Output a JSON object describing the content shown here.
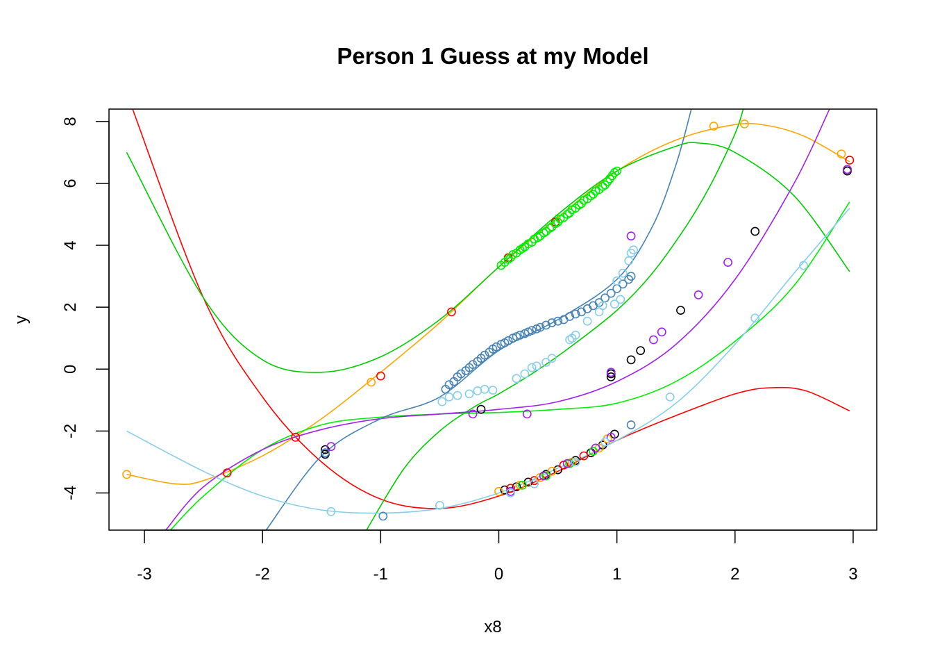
{
  "chart_data": {
    "type": "scatter",
    "title": "Person 1 Guess at my Model",
    "xlabel": "x8",
    "ylabel": "y",
    "xlim": [
      -3.3,
      3.2
    ],
    "ylim": [
      -5.2,
      8.4
    ],
    "grid": false,
    "x_ticks": [
      {
        "value": -3,
        "label": "-3"
      },
      {
        "value": -2,
        "label": "-2"
      },
      {
        "value": -1,
        "label": "-1"
      },
      {
        "value": 0,
        "label": "0"
      },
      {
        "value": 1,
        "label": "1"
      },
      {
        "value": 2,
        "label": "2"
      },
      {
        "value": 3,
        "label": "3"
      }
    ],
    "y_ticks": [
      {
        "value": -4,
        "label": "-4"
      },
      {
        "value": -2,
        "label": "-2"
      },
      {
        "value": 0,
        "label": "0"
      },
      {
        "value": 2,
        "label": "2"
      },
      {
        "value": 4,
        "label": "4"
      },
      {
        "value": 6,
        "label": "6"
      },
      {
        "value": 8,
        "label": "8"
      }
    ],
    "curves": [
      {
        "color": "#ff0000",
        "x": [
          -3.1,
          -2.5,
          -2.0,
          -1.5,
          -1.0,
          -0.5,
          0.0,
          0.5,
          1.0,
          1.5,
          2.0,
          2.3,
          2.6,
          2.97
        ],
        "y": [
          8.4,
          2.3,
          -0.9,
          -3.0,
          -4.2,
          -4.5,
          -4.1,
          -3.3,
          -2.3,
          -1.5,
          -0.8,
          -0.6,
          -0.7,
          -1.35
        ]
      },
      {
        "color": "#ffa500",
        "x": [
          -3.15,
          -2.75,
          -2.5,
          -2.0,
          -1.5,
          -1.0,
          -0.5,
          0.0,
          0.5,
          1.0,
          1.5,
          2.0,
          2.3,
          2.6,
          2.97
        ],
        "y": [
          -3.4,
          -3.7,
          -3.6,
          -2.8,
          -1.6,
          -0.1,
          1.5,
          3.3,
          4.9,
          6.4,
          7.4,
          7.9,
          7.85,
          7.5,
          6.7
        ]
      },
      {
        "color": "#00cd00",
        "x": [
          -3.15,
          -2.5,
          -2.0,
          -1.5,
          -1.0,
          -0.5,
          0.0,
          0.5,
          1.0,
          1.5,
          1.7,
          2.0,
          2.5,
          2.97
        ],
        "y": [
          7.0,
          2.3,
          0.3,
          -0.1,
          0.4,
          1.6,
          3.3,
          5.0,
          6.4,
          7.2,
          7.3,
          7.0,
          5.6,
          3.15
        ]
      },
      {
        "color": "#00cd00",
        "x": [
          -1.12,
          -0.8,
          -0.5,
          -0.2,
          0.0,
          0.3,
          0.6,
          1.0,
          1.3,
          1.6,
          1.8,
          2.0,
          2.07
        ],
        "y": [
          -5.2,
          -3.2,
          -2.0,
          -1.2,
          -0.8,
          -0.1,
          0.7,
          1.9,
          3.1,
          4.7,
          6.0,
          7.6,
          8.4
        ]
      },
      {
        "color": "#00ee00",
        "x": [
          -2.78,
          -2.5,
          -2.0,
          -1.5,
          -1.0,
          -0.5,
          0.0,
          0.5,
          1.0,
          1.5,
          2.0,
          2.5,
          2.97
        ],
        "y": [
          -5.2,
          -4.1,
          -2.6,
          -1.8,
          -1.55,
          -1.45,
          -1.4,
          -1.3,
          -1.1,
          -0.4,
          0.9,
          2.7,
          5.4
        ]
      },
      {
        "color": "#a020f0",
        "x": [
          -2.82,
          -2.5,
          -2.0,
          -1.5,
          -1.0,
          -0.5,
          0.0,
          0.5,
          1.0,
          1.5,
          2.0,
          2.5,
          2.8
        ],
        "y": [
          -5.2,
          -3.8,
          -2.6,
          -1.95,
          -1.6,
          -1.45,
          -1.3,
          -1.05,
          -0.4,
          0.8,
          2.9,
          6.0,
          8.4
        ]
      },
      {
        "color": "#4682b4",
        "x": [
          -1.97,
          -1.5,
          -1.0,
          -0.5,
          0.0,
          0.5,
          1.0,
          1.3,
          1.5,
          1.63
        ],
        "y": [
          -5.2,
          -2.8,
          -1.6,
          -0.9,
          0.6,
          1.6,
          2.9,
          4.6,
          6.6,
          8.4
        ]
      },
      {
        "color": "#87ceeb",
        "x": [
          -3.15,
          -2.5,
          -2.0,
          -1.5,
          -1.0,
          -0.5,
          0.0,
          0.5,
          1.0,
          1.5,
          2.0,
          2.5,
          2.97
        ],
        "y": [
          -2.0,
          -3.3,
          -4.1,
          -4.55,
          -4.65,
          -4.5,
          -4.0,
          -3.2,
          -2.3,
          -1.1,
          0.8,
          3.1,
          5.2
        ]
      }
    ],
    "series": [
      {
        "color": "#000000",
        "points": [
          [
            -1.47,
            -2.75
          ],
          [
            -1.47,
            -2.6
          ],
          [
            -0.15,
            -1.3
          ],
          [
            0.95,
            -0.25
          ],
          [
            0.95,
            -0.15
          ],
          [
            1.12,
            0.3
          ],
          [
            1.2,
            0.6
          ],
          [
            1.54,
            1.9
          ],
          [
            2.17,
            4.45
          ],
          [
            2.95,
            6.4
          ],
          [
            2.95,
            6.45
          ],
          [
            0.05,
            -3.9
          ],
          [
            0.15,
            -3.8
          ],
          [
            0.25,
            -3.65
          ],
          [
            0.4,
            -3.4
          ],
          [
            0.5,
            -3.25
          ],
          [
            0.65,
            -2.95
          ],
          [
            0.78,
            -2.7
          ],
          [
            0.88,
            -2.45
          ],
          [
            0.98,
            -2.1
          ]
        ]
      },
      {
        "color": "#ff0000",
        "points": [
          [
            -2.3,
            -3.35
          ],
          [
            -1.72,
            -2.2
          ],
          [
            -0.4,
            1.85
          ],
          [
            -1.0,
            -0.22
          ],
          [
            0.08,
            3.6
          ],
          [
            0.48,
            4.75
          ],
          [
            2.97,
            6.75
          ],
          [
            0.1,
            -3.85
          ],
          [
            0.3,
            -3.6
          ],
          [
            0.55,
            -3.1
          ],
          [
            0.72,
            -2.8
          ]
        ]
      },
      {
        "color": "#ffa500",
        "points": [
          [
            -3.15,
            -3.4
          ],
          [
            -1.08,
            -0.42
          ],
          [
            1.82,
            7.85
          ],
          [
            2.08,
            7.92
          ],
          [
            2.9,
            6.95
          ],
          [
            0.0,
            -3.95
          ],
          [
            0.18,
            -3.75
          ],
          [
            0.35,
            -3.5
          ],
          [
            0.45,
            -3.3
          ],
          [
            0.62,
            -3.0
          ],
          [
            0.85,
            -2.55
          ],
          [
            0.92,
            -2.25
          ]
        ]
      },
      {
        "color": "#00ee00",
        "points": [
          [
            0.02,
            3.35
          ],
          [
            0.05,
            3.45
          ],
          [
            0.08,
            3.55
          ],
          [
            0.1,
            3.6
          ],
          [
            0.12,
            3.7
          ],
          [
            0.15,
            3.75
          ],
          [
            0.18,
            3.85
          ],
          [
            0.2,
            3.9
          ],
          [
            0.22,
            3.95
          ],
          [
            0.25,
            4.05
          ],
          [
            0.28,
            4.1
          ],
          [
            0.3,
            4.2
          ],
          [
            0.33,
            4.25
          ],
          [
            0.35,
            4.3
          ],
          [
            0.38,
            4.4
          ],
          [
            0.4,
            4.45
          ],
          [
            0.43,
            4.55
          ],
          [
            0.45,
            4.6
          ],
          [
            0.48,
            4.7
          ],
          [
            0.5,
            4.75
          ],
          [
            0.52,
            4.85
          ],
          [
            0.55,
            4.9
          ],
          [
            0.58,
            5.0
          ],
          [
            0.6,
            5.05
          ],
          [
            0.62,
            5.15
          ],
          [
            0.65,
            5.2
          ],
          [
            0.68,
            5.3
          ],
          [
            0.7,
            5.35
          ],
          [
            0.72,
            5.45
          ],
          [
            0.75,
            5.5
          ],
          [
            0.78,
            5.6
          ],
          [
            0.8,
            5.65
          ],
          [
            0.82,
            5.75
          ],
          [
            0.85,
            5.8
          ],
          [
            0.88,
            5.9
          ],
          [
            0.9,
            5.95
          ],
          [
            0.92,
            6.05
          ],
          [
            0.94,
            6.15
          ],
          [
            0.96,
            6.25
          ],
          [
            0.98,
            6.35
          ],
          [
            1.0,
            6.4
          ],
          [
            0.2,
            -3.75
          ],
          [
            0.4,
            -3.45
          ],
          [
            0.6,
            -3.05
          ],
          [
            0.8,
            -2.65
          ]
        ]
      },
      {
        "color": "#a020f0",
        "points": [
          [
            -1.42,
            -2.5
          ],
          [
            -0.22,
            -1.45
          ],
          [
            0.24,
            -1.45
          ],
          [
            0.95,
            -0.1
          ],
          [
            1.12,
            4.3
          ],
          [
            1.31,
            0.95
          ],
          [
            1.38,
            1.2
          ],
          [
            1.69,
            2.4
          ],
          [
            1.94,
            3.45
          ],
          [
            2.95,
            6.45
          ],
          [
            0.1,
            -3.95
          ],
          [
            0.38,
            -3.45
          ],
          [
            0.58,
            -3.05
          ],
          [
            0.82,
            -2.55
          ],
          [
            0.95,
            -2.2
          ]
        ]
      },
      {
        "color": "#4682b4",
        "points": [
          [
            -0.98,
            -4.75
          ],
          [
            -1.47,
            -2.7
          ],
          [
            1.12,
            -1.8
          ],
          [
            -0.45,
            -0.65
          ],
          [
            -0.42,
            -0.5
          ],
          [
            -0.38,
            -0.4
          ],
          [
            -0.35,
            -0.25
          ],
          [
            -0.32,
            -0.15
          ],
          [
            -0.28,
            -0.05
          ],
          [
            -0.25,
            0.05
          ],
          [
            -0.22,
            0.15
          ],
          [
            -0.18,
            0.25
          ],
          [
            -0.15,
            0.35
          ],
          [
            -0.12,
            0.45
          ],
          [
            -0.08,
            0.55
          ],
          [
            -0.05,
            0.65
          ],
          [
            -0.02,
            0.72
          ],
          [
            0.02,
            0.8
          ],
          [
            0.05,
            0.85
          ],
          [
            0.08,
            0.92
          ],
          [
            0.12,
            1.0
          ],
          [
            0.15,
            1.05
          ],
          [
            0.18,
            1.1
          ],
          [
            0.22,
            1.15
          ],
          [
            0.25,
            1.2
          ],
          [
            0.28,
            1.25
          ],
          [
            0.32,
            1.3
          ],
          [
            0.35,
            1.35
          ],
          [
            0.4,
            1.42
          ],
          [
            0.45,
            1.5
          ],
          [
            0.5,
            1.55
          ],
          [
            0.55,
            1.6
          ],
          [
            0.6,
            1.7
          ],
          [
            0.65,
            1.78
          ],
          [
            0.7,
            1.85
          ],
          [
            0.75,
            1.95
          ],
          [
            0.8,
            2.05
          ],
          [
            0.85,
            2.15
          ],
          [
            0.9,
            2.3
          ],
          [
            0.95,
            2.45
          ],
          [
            1.0,
            2.6
          ],
          [
            1.05,
            2.75
          ],
          [
            1.1,
            2.9
          ],
          [
            1.12,
            3.0
          ]
        ]
      },
      {
        "color": "#87ceeb",
        "points": [
          [
            -1.42,
            -4.6
          ],
          [
            -0.5,
            -4.4
          ],
          [
            -0.48,
            -1.05
          ],
          [
            -0.42,
            -0.9
          ],
          [
            -0.35,
            -0.85
          ],
          [
            -0.25,
            -0.8
          ],
          [
            -0.18,
            -0.7
          ],
          [
            -0.12,
            -0.65
          ],
          [
            -0.05,
            -0.68
          ],
          [
            0.15,
            -0.3
          ],
          [
            0.22,
            -0.15
          ],
          [
            0.28,
            0.05
          ],
          [
            0.32,
            0.1
          ],
          [
            0.4,
            0.22
          ],
          [
            0.45,
            0.35
          ],
          [
            0.6,
            0.95
          ],
          [
            0.62,
            1.0
          ],
          [
            0.65,
            1.1
          ],
          [
            0.75,
            1.55
          ],
          [
            0.85,
            1.85
          ],
          [
            0.88,
            2.05
          ],
          [
            0.98,
            2.1
          ],
          [
            1.03,
            2.25
          ],
          [
            1.0,
            2.85
          ],
          [
            1.05,
            3.1
          ],
          [
            1.1,
            3.5
          ],
          [
            1.12,
            3.75
          ],
          [
            1.14,
            3.85
          ],
          [
            1.45,
            -0.9
          ],
          [
            2.17,
            1.65
          ],
          [
            2.58,
            3.35
          ],
          [
            0.1,
            -4.0
          ],
          [
            0.3,
            -3.7
          ],
          [
            0.65,
            -3.0
          ],
          [
            0.9,
            -2.35
          ]
        ]
      }
    ]
  }
}
